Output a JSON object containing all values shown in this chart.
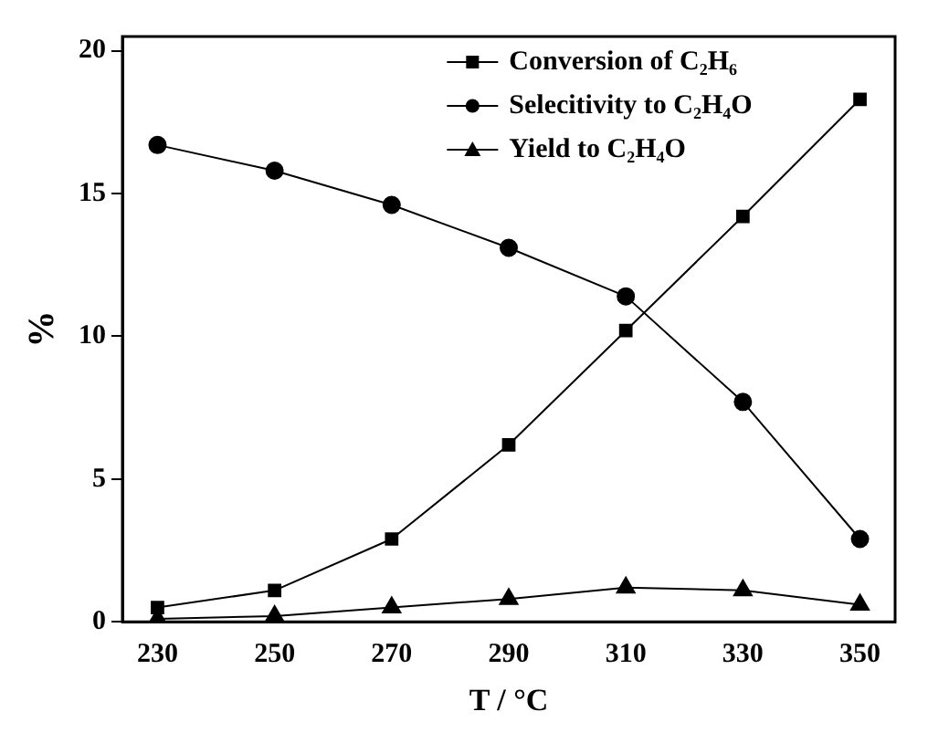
{
  "chart_data": {
    "type": "line",
    "xlabel": "T / °C",
    "ylabel": "%",
    "x": [
      230,
      250,
      270,
      290,
      310,
      330,
      350
    ],
    "xlim": [
      224,
      356
    ],
    "xticks": [
      230,
      250,
      270,
      290,
      310,
      330,
      350
    ],
    "ylim": [
      0,
      20.5
    ],
    "yticks": [
      0,
      5,
      10,
      15,
      20
    ],
    "grid": false,
    "legend": "top right",
    "line_style": "solid",
    "series": [
      {
        "name": "Conversion of C₂H₆",
        "color": "#000000",
        "marker": "square",
        "values": [
          0.5,
          1.1,
          2.9,
          6.2,
          10.2,
          14.2,
          18.3
        ]
      },
      {
        "name": "Selecitivity to C₂H₄O",
        "color": "#000000",
        "marker": "circle",
        "values": [
          16.7,
          15.8,
          14.6,
          13.1,
          11.4,
          7.7,
          2.9
        ]
      },
      {
        "name": "Yield to C₂H₄O",
        "color": "#000000",
        "marker": "triangle",
        "values": [
          0.1,
          0.2,
          0.5,
          0.8,
          1.2,
          1.1,
          0.6
        ]
      }
    ]
  }
}
